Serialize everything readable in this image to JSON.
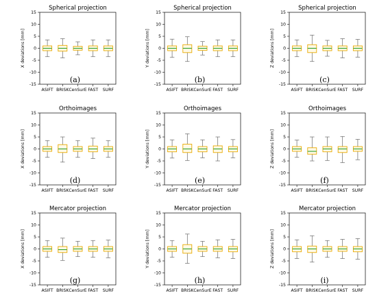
{
  "colors": {
    "box_fill": "#fff9e6",
    "box_edge": "#e8a900",
    "median": "#2ca02c",
    "whisker": "#666666",
    "axis": "#000000"
  },
  "chart_data": [
    {
      "type": "box",
      "panel_label": "(a)",
      "title": "Spherical projection",
      "ylabel": "X deviations [mm]",
      "ylim": [
        -15,
        15
      ],
      "yticks": [
        -15,
        -10,
        -5,
        0,
        5,
        10,
        15
      ],
      "categories": [
        "ASIFT",
        "BRISK",
        "CenSurE",
        "FAST",
        "SURF"
      ],
      "boxes": [
        {
          "q1": -1.0,
          "median": 0.0,
          "q3": 1.0,
          "whislo": -3.5,
          "whishi": 3.5
        },
        {
          "q1": -1.2,
          "median": 0.0,
          "q3": 1.2,
          "whislo": -4.0,
          "whishi": 4.0
        },
        {
          "q1": -0.8,
          "median": 0.0,
          "q3": 0.8,
          "whislo": -2.7,
          "whishi": 2.7
        },
        {
          "q1": -1.0,
          "median": 0.0,
          "q3": 1.0,
          "whislo": -3.5,
          "whishi": 3.5
        },
        {
          "q1": -1.0,
          "median": 0.0,
          "q3": 1.0,
          "whislo": -3.5,
          "whishi": 3.5
        }
      ]
    },
    {
      "type": "box",
      "panel_label": "(b)",
      "title": "Spherical projection",
      "ylabel": "Y deviations [mm]",
      "ylim": [
        -15,
        15
      ],
      "yticks": [
        -15,
        -10,
        -5,
        0,
        5,
        10,
        15
      ],
      "categories": [
        "ASIFT",
        "BRISK",
        "CenSurE",
        "FAST",
        "SURF"
      ],
      "boxes": [
        {
          "q1": -1.0,
          "median": 0.0,
          "q3": 1.0,
          "whislo": -3.8,
          "whishi": 3.8
        },
        {
          "q1": -1.8,
          "median": 0.0,
          "q3": 1.5,
          "whislo": -5.5,
          "whishi": 4.8
        },
        {
          "q1": -0.9,
          "median": 0.0,
          "q3": 0.9,
          "whislo": -2.8,
          "whishi": 2.8
        },
        {
          "q1": -1.0,
          "median": 0.0,
          "q3": 1.0,
          "whislo": -3.5,
          "whishi": 3.5
        },
        {
          "q1": -1.0,
          "median": 0.0,
          "q3": 1.0,
          "whislo": -3.5,
          "whishi": 3.5
        }
      ]
    },
    {
      "type": "box",
      "panel_label": "(c)",
      "title": "Spherical projection",
      "ylabel": "Z deviations [mm]",
      "ylim": [
        -15,
        15
      ],
      "yticks": [
        -15,
        -10,
        -5,
        0,
        5,
        10,
        15
      ],
      "categories": [
        "ASIFT",
        "BRISK",
        "CenSurE",
        "FAST",
        "SURF"
      ],
      "boxes": [
        {
          "q1": -1.0,
          "median": 0.0,
          "q3": 1.0,
          "whislo": -3.5,
          "whishi": 3.5
        },
        {
          "q1": -1.8,
          "median": 0.0,
          "q3": 1.5,
          "whislo": -5.5,
          "whishi": 5.5
        },
        {
          "q1": -1.0,
          "median": 0.0,
          "q3": 1.0,
          "whislo": -3.3,
          "whishi": 3.3
        },
        {
          "q1": -1.0,
          "median": 0.0,
          "q3": 1.0,
          "whislo": -4.0,
          "whishi": 4.0
        },
        {
          "q1": -1.0,
          "median": 0.0,
          "q3": 1.0,
          "whislo": -3.7,
          "whishi": 3.7
        }
      ]
    },
    {
      "type": "box",
      "panel_label": "(d)",
      "title": "Orthoimages",
      "ylabel": "X deviations [mm]",
      "ylim": [
        -15,
        15
      ],
      "yticks": [
        -15,
        -10,
        -5,
        0,
        5,
        10,
        15
      ],
      "categories": [
        "ASIFT",
        "BRISK",
        "CenSurE",
        "FAST",
        "SURF"
      ],
      "boxes": [
        {
          "q1": -1.0,
          "median": 0.0,
          "q3": 1.0,
          "whislo": -3.5,
          "whishi": 3.5
        },
        {
          "q1": -1.5,
          "median": 0.0,
          "q3": 1.8,
          "whislo": -5.5,
          "whishi": 5.0
        },
        {
          "q1": -1.0,
          "median": 0.0,
          "q3": 1.0,
          "whislo": -3.5,
          "whishi": 3.5
        },
        {
          "q1": -1.2,
          "median": 0.0,
          "q3": 1.2,
          "whislo": -4.0,
          "whishi": 4.5
        },
        {
          "q1": -1.0,
          "median": 0.0,
          "q3": 1.0,
          "whislo": -3.5,
          "whishi": 3.5
        }
      ]
    },
    {
      "type": "box",
      "panel_label": "(e)",
      "title": "Orthoimages",
      "ylabel": "Y deviations [mm]",
      "ylim": [
        -15,
        15
      ],
      "yticks": [
        -15,
        -10,
        -5,
        0,
        5,
        10,
        15
      ],
      "categories": [
        "ASIFT",
        "BRISK",
        "CenSurE",
        "FAST",
        "SURF"
      ],
      "boxes": [
        {
          "q1": -1.2,
          "median": 0.0,
          "q3": 1.0,
          "whislo": -3.8,
          "whishi": 3.8
        },
        {
          "q1": -1.5,
          "median": 0.0,
          "q3": 2.0,
          "whislo": -4.8,
          "whishi": 6.3
        },
        {
          "q1": -1.2,
          "median": 0.0,
          "q3": 1.0,
          "whislo": -3.7,
          "whishi": 3.8
        },
        {
          "q1": -1.5,
          "median": 0.0,
          "q3": 1.3,
          "whislo": -5.0,
          "whishi": 5.0
        },
        {
          "q1": -1.2,
          "median": 0.0,
          "q3": 1.0,
          "whislo": -3.7,
          "whishi": 3.9
        }
      ]
    },
    {
      "type": "box",
      "panel_label": "(f)",
      "title": "Orthoimages",
      "ylabel": "Z deviations [mm]",
      "ylim": [
        -15,
        15
      ],
      "yticks": [
        -15,
        -10,
        -5,
        0,
        5,
        10,
        15
      ],
      "categories": [
        "ASIFT",
        "BRISK",
        "CenSurE",
        "FAST",
        "SURF"
      ],
      "boxes": [
        {
          "q1": -1.0,
          "median": 0.0,
          "q3": 1.0,
          "whislo": -3.5,
          "whishi": 3.7
        },
        {
          "q1": -2.2,
          "median": -1.0,
          "q3": 0.5,
          "whislo": -5.0,
          "whishi": 5.0
        },
        {
          "q1": -1.2,
          "median": 0.0,
          "q3": 1.0,
          "whislo": -4.8,
          "whishi": 5.0
        },
        {
          "q1": -1.5,
          "median": 0.0,
          "q3": 1.0,
          "whislo": -5.7,
          "whishi": 5.2
        },
        {
          "q1": -1.0,
          "median": 0.0,
          "q3": 1.0,
          "whislo": -4.5,
          "whishi": 4.0
        }
      ]
    },
    {
      "type": "box",
      "panel_label": "(g)",
      "title": "Mercator projection",
      "ylabel": "X deviations [mm]",
      "ylim": [
        -15,
        15
      ],
      "yticks": [
        -15,
        -10,
        -5,
        0,
        5,
        10,
        15
      ],
      "categories": [
        "ASIFT",
        "BRISK",
        "CenSurE",
        "FAST",
        "SURF"
      ],
      "boxes": [
        {
          "q1": -1.0,
          "median": 0.0,
          "q3": 1.0,
          "whislo": -3.5,
          "whishi": 3.5
        },
        {
          "q1": -1.5,
          "median": -0.3,
          "q3": 1.0,
          "whislo": -4.8,
          "whishi": 4.5
        },
        {
          "q1": -1.0,
          "median": 0.0,
          "q3": 1.0,
          "whislo": -3.2,
          "whishi": 3.2
        },
        {
          "q1": -1.0,
          "median": 0.0,
          "q3": 1.0,
          "whislo": -3.5,
          "whishi": 3.5
        },
        {
          "q1": -1.0,
          "median": 0.0,
          "q3": 1.0,
          "whislo": -3.7,
          "whishi": 3.7
        }
      ]
    },
    {
      "type": "box",
      "panel_label": "(h)",
      "title": "Mercator projection",
      "ylabel": "Y deviations [mm]",
      "ylim": [
        -15,
        15
      ],
      "yticks": [
        -15,
        -10,
        -5,
        0,
        5,
        10,
        15
      ],
      "categories": [
        "ASIFT",
        "BRISK",
        "CenSurE",
        "FAST",
        "SURF"
      ],
      "boxes": [
        {
          "q1": -1.0,
          "median": 0.0,
          "q3": 1.0,
          "whislo": -3.5,
          "whishi": 3.5
        },
        {
          "q1": -1.8,
          "median": 0.0,
          "q3": 1.8,
          "whislo": -6.0,
          "whishi": 6.2
        },
        {
          "q1": -1.0,
          "median": 0.0,
          "q3": 1.0,
          "whislo": -3.2,
          "whishi": 3.2
        },
        {
          "q1": -1.0,
          "median": 0.0,
          "q3": 1.0,
          "whislo": -3.7,
          "whishi": 3.8
        },
        {
          "q1": -1.2,
          "median": 0.0,
          "q3": 1.0,
          "whislo": -4.0,
          "whishi": 4.0
        }
      ]
    },
    {
      "type": "box",
      "panel_label": "(i)",
      "title": "Mercator projection",
      "ylabel": "Z deviations [mm]",
      "ylim": [
        -15,
        15
      ],
      "yticks": [
        -15,
        -10,
        -5,
        0,
        5,
        10,
        15
      ],
      "categories": [
        "ASIFT",
        "BRISK",
        "CenSurE",
        "FAST",
        "SURF"
      ],
      "boxes": [
        {
          "q1": -1.2,
          "median": 0.0,
          "q3": 1.0,
          "whislo": -4.0,
          "whishi": 3.8
        },
        {
          "q1": -1.5,
          "median": 0.0,
          "q3": 1.2,
          "whislo": -5.5,
          "whishi": 5.5
        },
        {
          "q1": -1.0,
          "median": 0.0,
          "q3": 1.0,
          "whislo": -3.5,
          "whishi": 3.5
        },
        {
          "q1": -1.0,
          "median": 0.0,
          "q3": 1.0,
          "whislo": -4.0,
          "whishi": 4.0
        },
        {
          "q1": -1.2,
          "median": 0.0,
          "q3": 1.0,
          "whislo": -4.3,
          "whishi": 4.3
        }
      ]
    }
  ]
}
